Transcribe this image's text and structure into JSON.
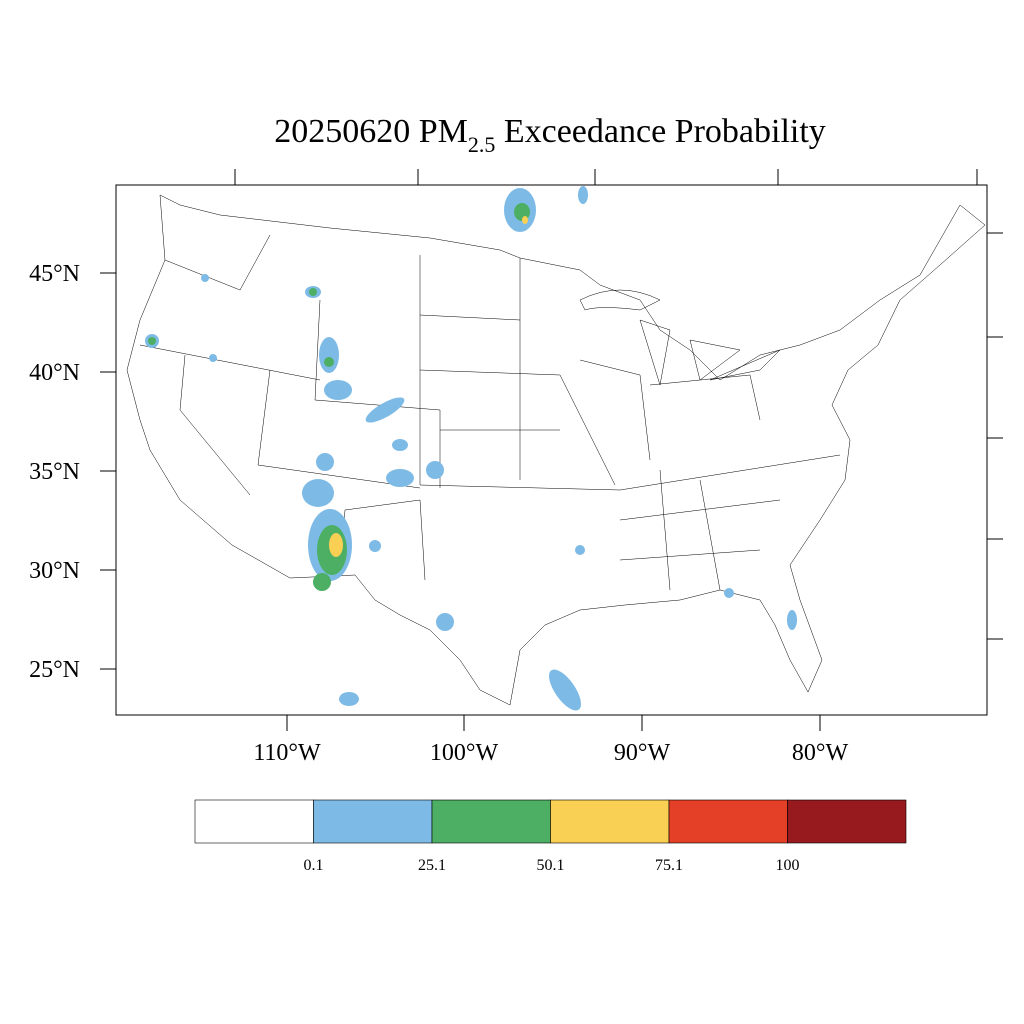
{
  "title": {
    "prefix": "20250620 PM",
    "subscript": "2.5",
    "suffix": " Exceedance Probability"
  },
  "lat_labels": [
    "45°N",
    "40°N",
    "35°N",
    "30°N",
    "25°N"
  ],
  "lon_labels": [
    "110°W",
    "100°W",
    "90°W",
    "80°W"
  ],
  "colorbar": {
    "colors": [
      "#ffffff",
      "#7dbbe6",
      "#4caf64",
      "#f9d054",
      "#e34027",
      "#971a1e"
    ],
    "labels": [
      0.1,
      25.1,
      50.1,
      75.1,
      100
    ]
  }
}
